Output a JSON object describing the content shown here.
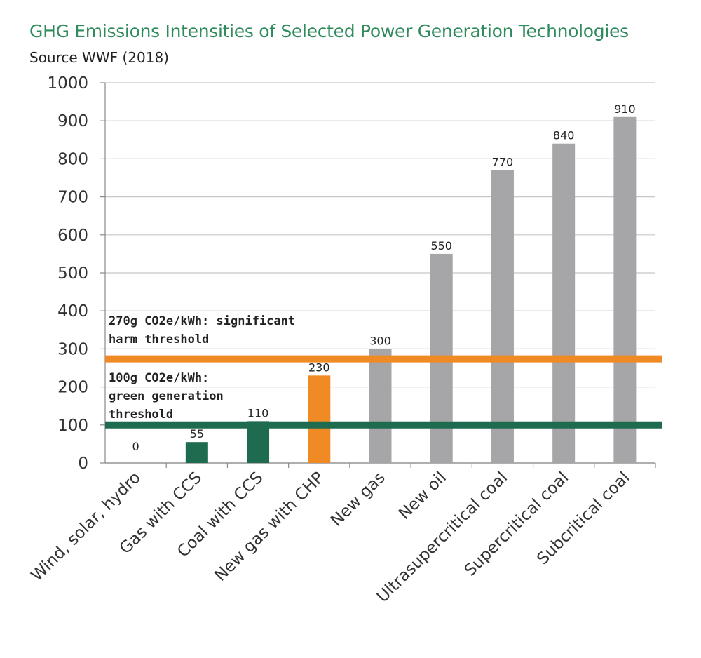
{
  "chart_data": {
    "type": "bar",
    "title": "GHG Emissions Intensities of Selected Power Generation Technologies",
    "subtitle": "Source WWF (2018)",
    "xlabel": "",
    "ylabel": "",
    "ylim": [
      0,
      1000
    ],
    "yticks": [
      0,
      100,
      200,
      300,
      400,
      500,
      600,
      700,
      800,
      900,
      1000
    ],
    "grid": true,
    "categories": [
      "Wind, solar, hydro",
      "Gas with CCS",
      "Coal with CCS",
      "New gas with CHP",
      "New gas",
      "New oil",
      "Ultrasupercritical coal",
      "Supercritical coal",
      "Subcritical coal"
    ],
    "values": [
      0,
      55,
      110,
      230,
      300,
      550,
      770,
      840,
      910
    ],
    "data_labels": [
      "0",
      "55",
      "110",
      "230",
      "300",
      "550",
      "770",
      "840",
      "910"
    ],
    "bar_colors": [
      "#1f6b4f",
      "#1f6b4f",
      "#1f6b4f",
      "#f08a24",
      "#a6a6a8",
      "#a6a6a8",
      "#a6a6a8",
      "#a6a6a8",
      "#a6a6a8"
    ],
    "thresholds": [
      {
        "value": 270,
        "color": "#f08a24",
        "lines": [
          "270g CO2e/kWh: significant",
          "harm threshold"
        ]
      },
      {
        "value": 100,
        "color": "#1f6b4f",
        "lines": [
          "100g CO2e/kWh:",
          "green generation",
          "threshold"
        ]
      }
    ]
  }
}
